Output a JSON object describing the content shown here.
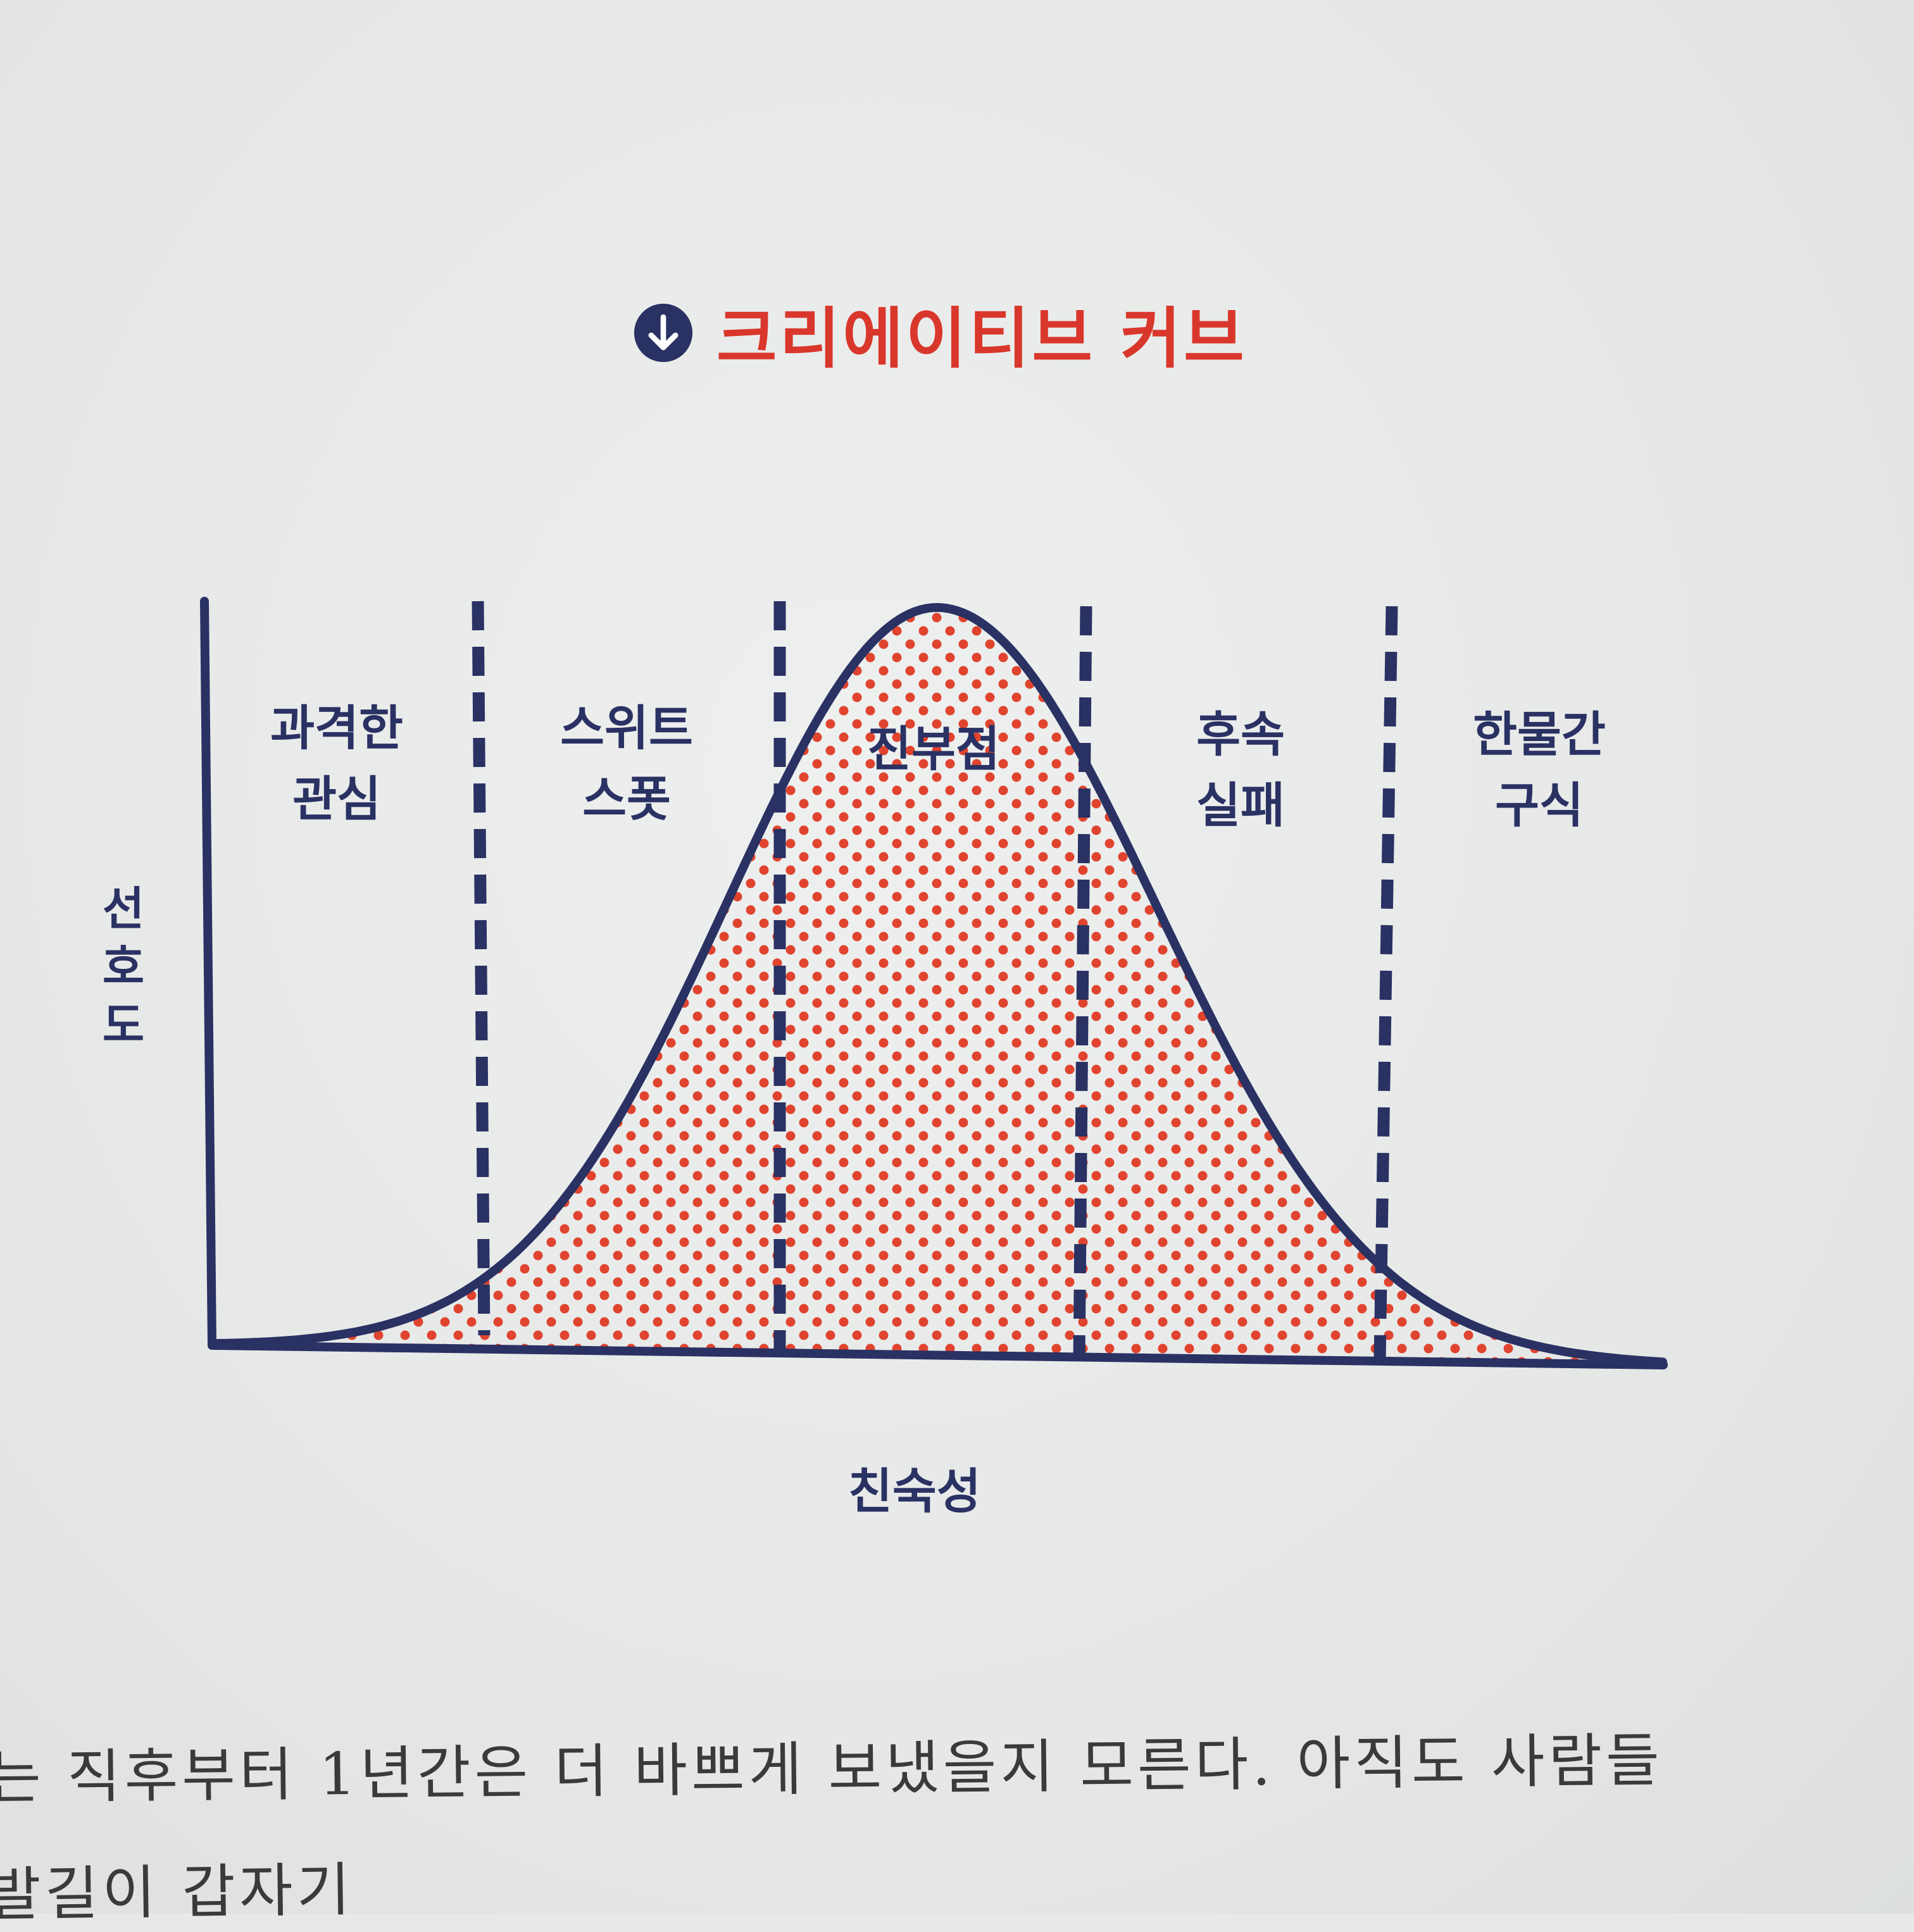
{
  "colors": {
    "accent": "#d9372c",
    "navy": "#2a3163",
    "dots": "#e0442f"
  },
  "title": {
    "icon": "circle-arrow-down-icon",
    "text": "크리에이티브 커브"
  },
  "chart_data": {
    "type": "area",
    "title": "크리에이티브 커브",
    "xlabel": "친숙성",
    "ylabel": "선호도",
    "grid": false,
    "legend": "none",
    "curve": "bell",
    "zones": [
      {
        "lines": [
          "과격한",
          "관심"
        ]
      },
      {
        "lines": [
          "스위트",
          "스폿"
        ]
      },
      {
        "lines": [
          "진부점"
        ]
      },
      {
        "lines": [
          "후속",
          "실패"
        ]
      },
      {
        "lines": [
          "한물간",
          "구식"
        ]
      }
    ]
  },
  "body_text": {
    "line1": "는 직후부터 1년간은 더 바쁘게 보냈을지 모른다. 아직도 사람들",
    "line2": "발길이 갑자기"
  }
}
